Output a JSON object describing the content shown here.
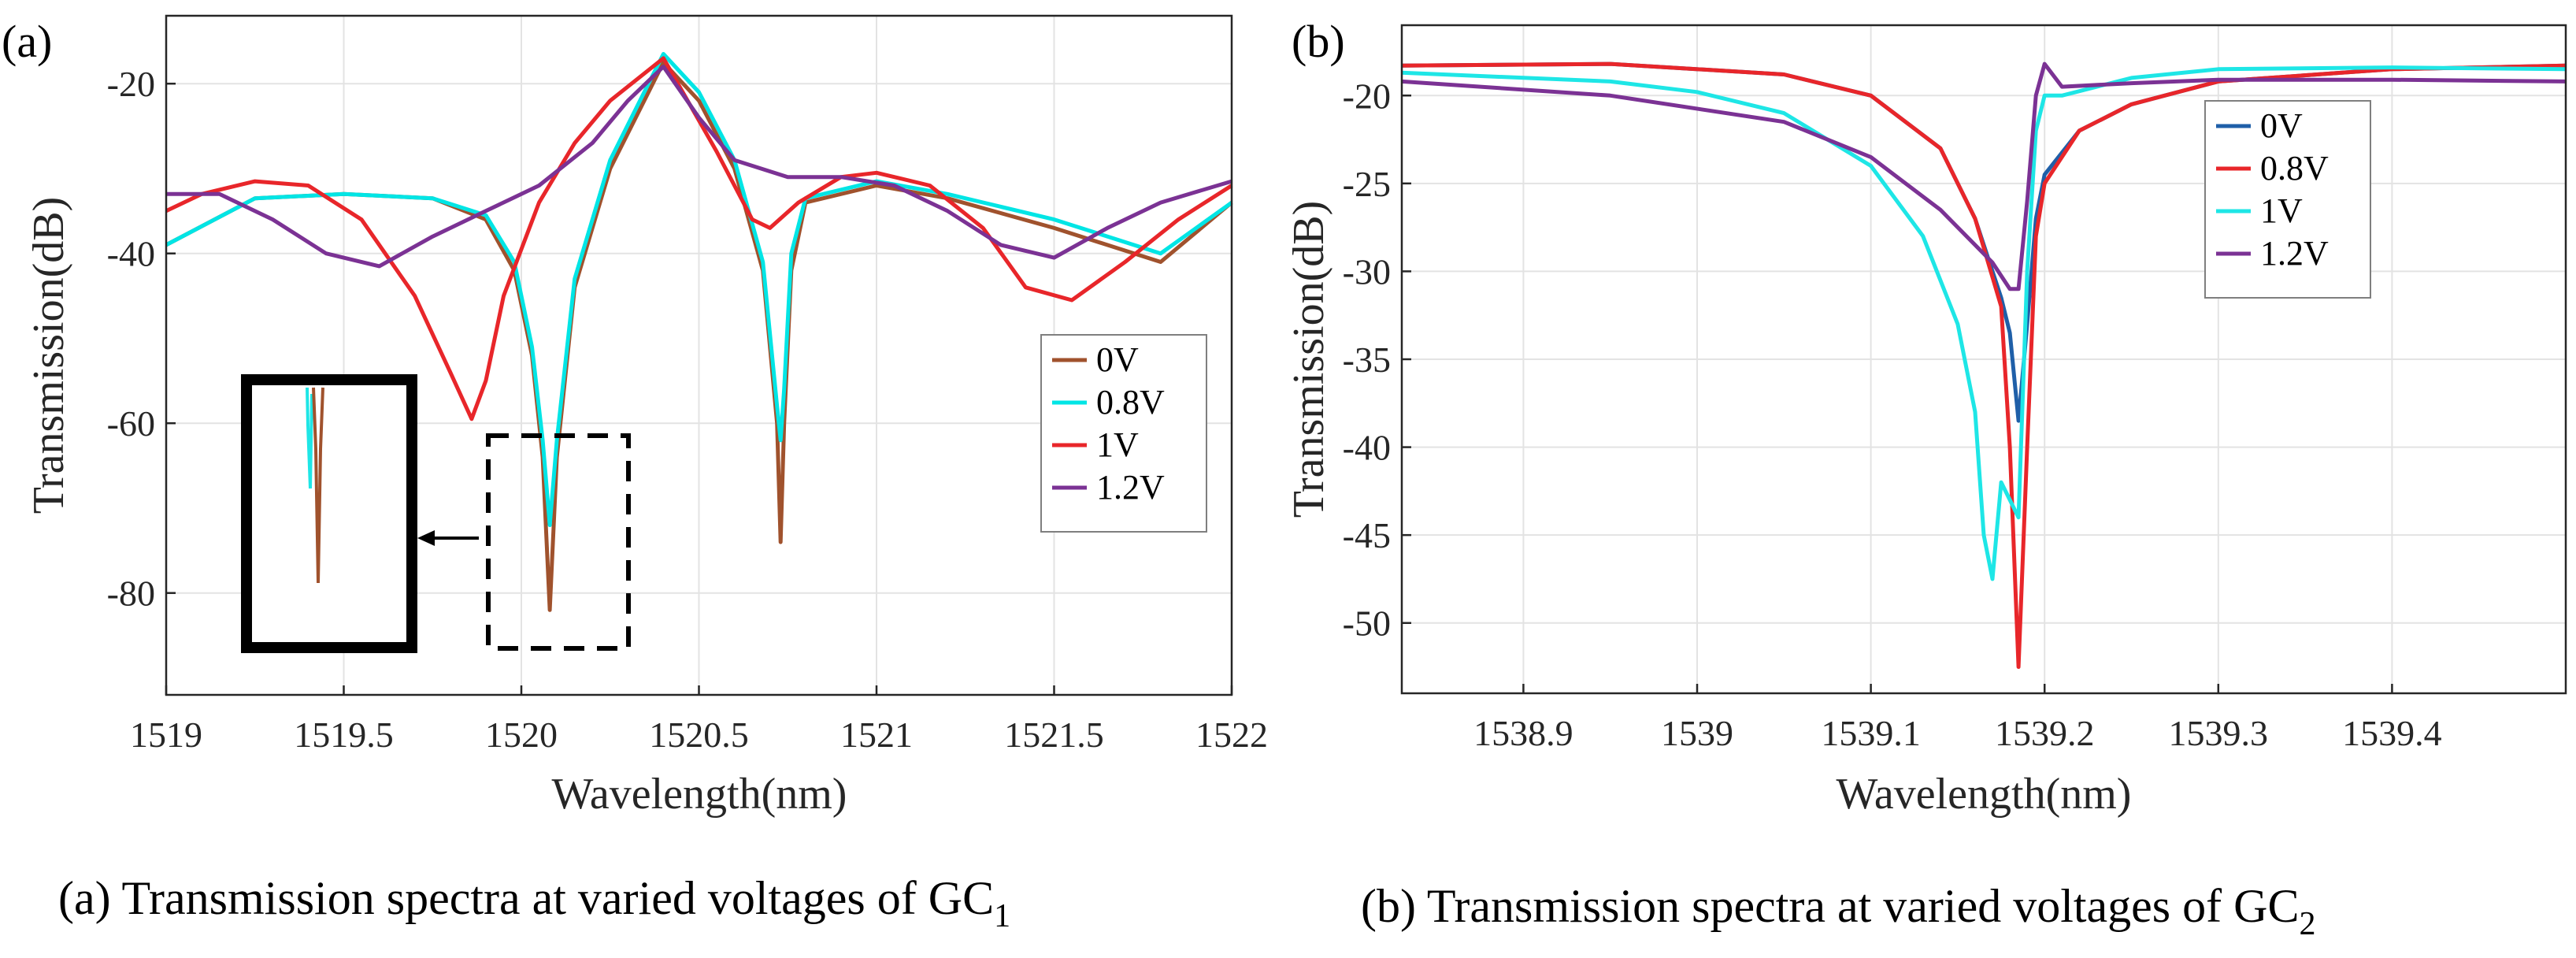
{
  "chart_data": [
    {
      "type": "line",
      "panel": "(a)",
      "xlabel": "Wavelength(nm)",
      "ylabel": "Transmission(dB)",
      "xlim": [
        1519,
        1522
      ],
      "ylim": [
        -92,
        -12
      ],
      "xticks": [
        1519,
        1519.5,
        1520,
        1520.5,
        1521,
        1521.5,
        1522
      ],
      "xtick_labels": [
        "1519",
        "1519.5",
        "1520",
        "1520.5",
        "1521",
        "1521.5",
        "1522"
      ],
      "yticks": [
        -20,
        -40,
        -60,
        -80
      ],
      "ytick_labels": [
        "-20",
        "-40",
        "-60",
        "-80"
      ],
      "legend": [
        "0V",
        "0.8V",
        "1V",
        "1.2V"
      ],
      "caption_main": "(a) Transmission  spectra at varied voltages  of GC",
      "caption_sub": "1",
      "series": [
        {
          "name": "0V",
          "color": "#a0522d",
          "x": [
            1519,
            1519.25,
            1519.5,
            1519.75,
            1519.9,
            1519.98,
            1520.03,
            1520.06,
            1520.08,
            1520.1,
            1520.15,
            1520.25,
            1520.4,
            1520.5,
            1520.6,
            1520.68,
            1520.72,
            1520.73,
            1520.74,
            1520.76,
            1520.8,
            1521,
            1521.2,
            1521.5,
            1521.8,
            1522
          ],
          "y": [
            -39,
            -33.5,
            -33,
            -33.5,
            -36,
            -42,
            -52,
            -64,
            -82,
            -64,
            -44,
            -30,
            -17.5,
            -22,
            -30,
            -42,
            -60,
            -74,
            -60,
            -42,
            -34,
            -32,
            -33.5,
            -37,
            -41,
            -34
          ]
        },
        {
          "name": "0.8V",
          "color": "#00e5e5",
          "x": [
            1519,
            1519.25,
            1519.5,
            1519.75,
            1519.9,
            1519.98,
            1520.03,
            1520.06,
            1520.08,
            1520.1,
            1520.15,
            1520.25,
            1520.4,
            1520.5,
            1520.6,
            1520.68,
            1520.72,
            1520.73,
            1520.74,
            1520.76,
            1520.8,
            1521,
            1521.2,
            1521.5,
            1521.8,
            1522
          ],
          "y": [
            -39,
            -33.5,
            -33,
            -33.5,
            -35.5,
            -41,
            -51,
            -62,
            -72,
            -62,
            -43,
            -29,
            -16.5,
            -21,
            -29,
            -41,
            -58,
            -62,
            -56,
            -40,
            -33.5,
            -31.5,
            -33,
            -36,
            -40,
            -34
          ]
        },
        {
          "name": "1V",
          "color": "#e8262a",
          "x": [
            1519,
            1519.1,
            1519.25,
            1519.4,
            1519.55,
            1519.7,
            1519.8,
            1519.86,
            1519.9,
            1519.95,
            1520.05,
            1520.15,
            1520.25,
            1520.4,
            1520.55,
            1520.65,
            1520.7,
            1520.78,
            1520.9,
            1521,
            1521.15,
            1521.3,
            1521.42,
            1521.55,
            1521.7,
            1521.85,
            1522
          ],
          "y": [
            -35,
            -33,
            -31.5,
            -32,
            -36,
            -45,
            -54,
            -59.5,
            -55,
            -45,
            -34,
            -27,
            -22,
            -17,
            -28,
            -36,
            -37,
            -34,
            -31,
            -30.5,
            -32,
            -37,
            -44,
            -45.5,
            -41,
            -36,
            -32
          ]
        },
        {
          "name": "1.2V",
          "color": "#7b3294",
          "x": [
            1519,
            1519.15,
            1519.3,
            1519.45,
            1519.6,
            1519.75,
            1519.9,
            1520.05,
            1520.2,
            1520.3,
            1520.4,
            1520.5,
            1520.6,
            1520.75,
            1520.9,
            1521.05,
            1521.2,
            1521.35,
            1521.5,
            1521.65,
            1521.8,
            1522
          ],
          "y": [
            -33,
            -33,
            -36,
            -40,
            -41.5,
            -38,
            -35,
            -32,
            -27,
            -22,
            -18,
            -24,
            -29,
            -31,
            -31,
            -32,
            -35,
            -39,
            -40.5,
            -37,
            -34,
            -31.5
          ]
        }
      ]
    },
    {
      "type": "line",
      "panel": "(b)",
      "xlabel": "Wavelength(nm)",
      "ylabel": "Transmission(dB)",
      "xlim": [
        1538.83,
        1539.5
      ],
      "ylim": [
        -54,
        -16
      ],
      "xticks": [
        1538.9,
        1539,
        1539.1,
        1539.2,
        1539.3,
        1539.4
      ],
      "xtick_labels": [
        "1538.9",
        "1539",
        "1539.1",
        "1539.2",
        "1539.3",
        "1539.4"
      ],
      "yticks": [
        -20,
        -25,
        -30,
        -35,
        -40,
        -45,
        -50
      ],
      "ytick_labels": [
        "-20",
        "-25",
        "-30",
        "-35",
        "-40",
        "-45",
        "-50"
      ],
      "legend": [
        "0V",
        "0.8V",
        "1V",
        "1.2V"
      ],
      "caption_main": "(b) Transmission  spectra at varied voltages  of GC",
      "caption_sub": "2",
      "series": [
        {
          "name": "0V",
          "color": "#1f5fa8",
          "x": [
            1538.83,
            1538.95,
            1539.05,
            1539.1,
            1539.14,
            1539.16,
            1539.175,
            1539.18,
            1539.185,
            1539.19,
            1539.195,
            1539.2,
            1539.22,
            1539.25,
            1539.3,
            1539.4,
            1539.5
          ],
          "y": [
            -18.3,
            -18.2,
            -18.8,
            -20,
            -23,
            -27,
            -31.5,
            -33.5,
            -38.5,
            -33,
            -27,
            -24.5,
            -22,
            -20.5,
            -19.2,
            -18.5,
            -18.3
          ]
        },
        {
          "name": "0.8V",
          "color": "#e8262a",
          "x": [
            1538.83,
            1538.95,
            1539.05,
            1539.1,
            1539.14,
            1539.16,
            1539.175,
            1539.18,
            1539.185,
            1539.19,
            1539.195,
            1539.2,
            1539.22,
            1539.25,
            1539.3,
            1539.4,
            1539.5
          ],
          "y": [
            -18.3,
            -18.2,
            -18.8,
            -20,
            -23,
            -27,
            -32,
            -40,
            -52.5,
            -40,
            -28,
            -25,
            -22,
            -20.5,
            -19.2,
            -18.5,
            -18.3
          ]
        },
        {
          "name": "1V",
          "color": "#1ee6e6",
          "x": [
            1538.83,
            1538.95,
            1539.0,
            1539.05,
            1539.1,
            1539.13,
            1539.15,
            1539.16,
            1539.165,
            1539.17,
            1539.175,
            1539.18,
            1539.185,
            1539.19,
            1539.195,
            1539.2,
            1539.21,
            1539.25,
            1539.3,
            1539.4,
            1539.5
          ],
          "y": [
            -18.7,
            -19.2,
            -19.8,
            -21,
            -24,
            -28,
            -33,
            -38,
            -45,
            -47.5,
            -42,
            -43,
            -44,
            -30,
            -22,
            -20,
            -20,
            -19,
            -18.5,
            -18.4,
            -18.5
          ]
        },
        {
          "name": "1.2V",
          "color": "#7b3294",
          "x": [
            1538.83,
            1538.95,
            1539.05,
            1539.1,
            1539.14,
            1539.17,
            1539.18,
            1539.185,
            1539.19,
            1539.195,
            1539.2,
            1539.21,
            1539.25,
            1539.3,
            1539.4,
            1539.5
          ],
          "y": [
            -19.2,
            -20,
            -21.5,
            -23.5,
            -26.5,
            -29.5,
            -31,
            -31,
            -26,
            -20,
            -18.2,
            -19.5,
            -19.3,
            -19.1,
            -19.1,
            -19.2
          ]
        }
      ]
    }
  ]
}
